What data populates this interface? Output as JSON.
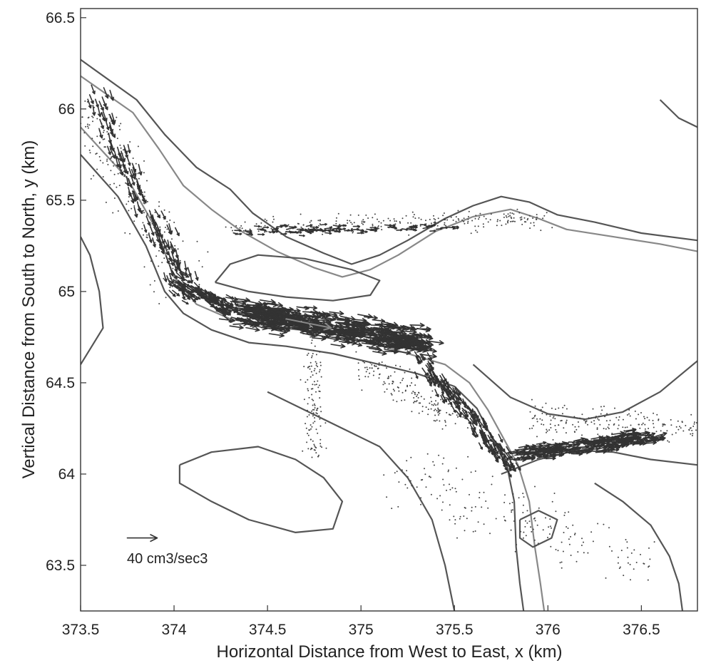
{
  "chart_data": {
    "type": "quiver",
    "xlabel": "Horizontal Distance from West to East, x (km)",
    "ylabel": "Vertical Distance from South to North, y (km)",
    "xlim": [
      373.5,
      376.8
    ],
    "ylim": [
      63.25,
      66.55
    ],
    "xticks": [
      "373.5",
      "374",
      "374.5",
      "375",
      "375.5",
      "376",
      "376.5"
    ],
    "yticks": [
      "66.5",
      "66",
      "65.5",
      "65",
      "64.5",
      "64",
      "63.5"
    ],
    "grid": false,
    "scale_arrow": {
      "label": "40 cm3/sec3",
      "x": 373.75,
      "y": 63.65,
      "magnitude": 40
    },
    "contours": [
      {
        "name": "outer-north-shore",
        "color": "#555555",
        "points": [
          [
            373.5,
            66.27
          ],
          [
            373.8,
            66.05
          ],
          [
            373.95,
            65.86
          ],
          [
            374.12,
            65.68
          ],
          [
            374.3,
            65.56
          ],
          [
            374.42,
            65.43
          ],
          [
            374.6,
            65.3
          ],
          [
            374.8,
            65.21
          ],
          [
            374.95,
            65.15
          ],
          [
            375.1,
            65.2
          ],
          [
            375.25,
            65.28
          ],
          [
            375.45,
            65.4
          ],
          [
            375.6,
            65.47
          ],
          [
            375.75,
            65.52
          ],
          [
            375.9,
            65.49
          ],
          [
            376.05,
            65.42
          ],
          [
            376.25,
            65.38
          ],
          [
            376.5,
            65.32
          ],
          [
            376.8,
            65.28
          ]
        ]
      },
      {
        "name": "inner-north-shore",
        "color": "#888888",
        "points": [
          [
            373.5,
            66.18
          ],
          [
            373.78,
            65.98
          ],
          [
            373.92,
            65.78
          ],
          [
            374.05,
            65.58
          ],
          [
            374.2,
            65.45
          ],
          [
            374.36,
            65.33
          ],
          [
            374.55,
            65.22
          ],
          [
            374.75,
            65.13
          ],
          [
            374.9,
            65.08
          ],
          [
            375.05,
            65.12
          ],
          [
            375.2,
            65.2
          ],
          [
            375.4,
            65.33
          ],
          [
            375.6,
            65.41
          ],
          [
            375.8,
            65.45
          ],
          [
            375.95,
            65.4
          ],
          [
            376.1,
            65.34
          ],
          [
            376.35,
            65.3
          ],
          [
            376.6,
            65.26
          ],
          [
            376.8,
            65.22
          ]
        ]
      },
      {
        "name": "outer-south-shore",
        "color": "#555555",
        "points": [
          [
            373.5,
            65.75
          ],
          [
            373.7,
            65.52
          ],
          [
            373.85,
            65.25
          ],
          [
            373.95,
            65.0
          ],
          [
            374.05,
            64.88
          ],
          [
            374.2,
            64.79
          ],
          [
            374.4,
            64.72
          ],
          [
            374.6,
            64.7
          ],
          [
            374.85,
            64.66
          ],
          [
            375.1,
            64.6
          ],
          [
            375.3,
            64.55
          ],
          [
            375.5,
            64.48
          ],
          [
            375.62,
            64.36
          ],
          [
            375.7,
            64.2
          ],
          [
            375.78,
            64.05
          ],
          [
            375.82,
            63.85
          ],
          [
            375.83,
            63.6
          ],
          [
            375.85,
            63.4
          ],
          [
            375.87,
            63.25
          ]
        ]
      },
      {
        "name": "inner-south-shore",
        "color": "#888888",
        "points": [
          [
            373.5,
            65.9
          ],
          [
            373.75,
            65.62
          ],
          [
            373.9,
            65.35
          ],
          [
            374.0,
            65.08
          ],
          [
            374.12,
            64.93
          ],
          [
            374.3,
            64.85
          ],
          [
            374.55,
            64.8
          ],
          [
            374.8,
            64.78
          ],
          [
            375.05,
            64.72
          ],
          [
            375.25,
            64.66
          ],
          [
            375.45,
            64.6
          ],
          [
            375.58,
            64.5
          ],
          [
            375.68,
            64.35
          ],
          [
            375.76,
            64.2
          ],
          [
            375.84,
            64.05
          ],
          [
            375.9,
            63.85
          ],
          [
            375.93,
            63.6
          ],
          [
            375.96,
            63.4
          ],
          [
            375.98,
            63.25
          ]
        ]
      },
      {
        "name": "east-channel-north",
        "color": "#555555",
        "points": [
          [
            375.6,
            64.6
          ],
          [
            375.8,
            64.42
          ],
          [
            376.0,
            64.33
          ],
          [
            376.2,
            64.3
          ],
          [
            376.4,
            64.34
          ],
          [
            376.6,
            64.45
          ],
          [
            376.8,
            64.62
          ]
        ]
      },
      {
        "name": "east-channel-south",
        "color": "#555555",
        "points": [
          [
            375.75,
            64.0
          ],
          [
            375.95,
            64.08
          ],
          [
            376.15,
            64.13
          ],
          [
            376.35,
            64.12
          ],
          [
            376.55,
            64.08
          ],
          [
            376.8,
            64.05
          ]
        ]
      },
      {
        "name": "island-north",
        "color": "#555555",
        "points": [
          [
            374.22,
            65.05
          ],
          [
            374.3,
            65.15
          ],
          [
            374.45,
            65.2
          ],
          [
            374.7,
            65.18
          ],
          [
            374.95,
            65.12
          ],
          [
            375.1,
            65.06
          ],
          [
            375.05,
            64.98
          ],
          [
            374.85,
            64.95
          ],
          [
            374.6,
            64.97
          ],
          [
            374.4,
            65.0
          ],
          [
            374.22,
            65.05
          ]
        ]
      },
      {
        "name": "island-southwest",
        "color": "#555555",
        "points": [
          [
            374.03,
            64.05
          ],
          [
            374.2,
            64.12
          ],
          [
            374.45,
            64.15
          ],
          [
            374.65,
            64.08
          ],
          [
            374.8,
            63.98
          ],
          [
            374.9,
            63.85
          ],
          [
            374.85,
            63.7
          ],
          [
            374.65,
            63.68
          ],
          [
            374.4,
            63.75
          ],
          [
            374.2,
            63.85
          ],
          [
            374.03,
            63.95
          ],
          [
            374.03,
            64.05
          ]
        ]
      },
      {
        "name": "island-east",
        "color": "#555555",
        "points": [
          [
            375.85,
            63.75
          ],
          [
            375.95,
            63.8
          ],
          [
            376.05,
            63.75
          ],
          [
            376.02,
            63.65
          ],
          [
            375.92,
            63.6
          ],
          [
            375.85,
            63.65
          ],
          [
            375.85,
            63.75
          ]
        ]
      },
      {
        "name": "south-shore-lower",
        "color": "#555555",
        "points": [
          [
            374.5,
            64.45
          ],
          [
            374.7,
            64.35
          ],
          [
            374.9,
            64.25
          ],
          [
            375.1,
            64.15
          ],
          [
            375.25,
            63.98
          ],
          [
            375.38,
            63.75
          ],
          [
            375.45,
            63.5
          ],
          [
            375.5,
            63.25
          ]
        ]
      },
      {
        "name": "southeast-shore",
        "color": "#555555",
        "points": [
          [
            376.25,
            63.95
          ],
          [
            376.4,
            63.85
          ],
          [
            376.55,
            63.72
          ],
          [
            376.65,
            63.55
          ],
          [
            376.7,
            63.4
          ],
          [
            376.72,
            63.25
          ]
        ]
      },
      {
        "name": "northeast-shore",
        "color": "#555555",
        "points": [
          [
            376.6,
            66.05
          ],
          [
            376.7,
            65.95
          ],
          [
            376.8,
            65.9
          ]
        ]
      },
      {
        "name": "west-shore",
        "color": "#555555",
        "points": [
          [
            373.5,
            64.6
          ],
          [
            373.62,
            64.8
          ],
          [
            373.6,
            65.0
          ],
          [
            373.55,
            65.2
          ],
          [
            373.5,
            65.3
          ]
        ]
      }
    ],
    "vectors": [
      {
        "name": "upstream-channel",
        "from": [
          373.55,
          66.1
        ],
        "to": [
          374.05,
          65.05
        ],
        "count": 120,
        "spread": 0.1,
        "u": 4,
        "v": -12,
        "jitter": 3,
        "color": "#333333"
      },
      {
        "name": "channel-bend",
        "from": [
          374.0,
          65.05
        ],
        "to": [
          374.3,
          64.9
        ],
        "count": 110,
        "spread": 0.08,
        "u": 10,
        "v": -6,
        "jitter": 4,
        "color": "#333333"
      },
      {
        "name": "main-jet",
        "from": [
          374.3,
          64.9
        ],
        "to": [
          375.3,
          64.72
        ],
        "count": 520,
        "spread": 0.11,
        "u": 18,
        "v": -2.5,
        "jitter": 4,
        "color": "#333333"
      },
      {
        "name": "north-passage",
        "from": [
          374.3,
          65.33
        ],
        "to": [
          375.5,
          65.35
        ],
        "count": 90,
        "spread": 0.04,
        "u": 8,
        "v": 0,
        "jitter": 3,
        "color": "#333333"
      },
      {
        "name": "downstream-bend",
        "from": [
          375.3,
          64.65
        ],
        "to": [
          375.8,
          64.05
        ],
        "count": 170,
        "spread": 0.07,
        "u": 5,
        "v": -9,
        "jitter": 3,
        "color": "#333333"
      },
      {
        "name": "east-jet",
        "from": [
          375.8,
          64.1
        ],
        "to": [
          376.55,
          64.2
        ],
        "count": 230,
        "spread": 0.06,
        "u": 14,
        "v": 2,
        "jitter": 4,
        "color": "#333333"
      },
      {
        "name": "mean-flow-arrow",
        "from": [
          374.6,
          64.85
        ],
        "to": [
          374.6,
          64.85
        ],
        "count": 1,
        "spread": 0,
        "u": 60,
        "v": -12,
        "jitter": 0,
        "color": "#888888"
      }
    ],
    "stipple_regions": [
      {
        "name": "upstream-sediment",
        "from": [
          373.5,
          66.0
        ],
        "to": [
          374.05,
          65.05
        ],
        "count": 220,
        "spread": 0.2
      },
      {
        "name": "north-passage-sediment",
        "from": [
          374.3,
          65.35
        ],
        "to": [
          376.0,
          65.4
        ],
        "count": 260,
        "spread": 0.08
      },
      {
        "name": "southwest-sediment",
        "from": [
          374.75,
          64.7
        ],
        "to": [
          374.75,
          64.1
        ],
        "count": 120,
        "spread": 0.08
      },
      {
        "name": "central-sediment",
        "from": [
          375.0,
          64.6
        ],
        "to": [
          375.5,
          64.3
        ],
        "count": 160,
        "spread": 0.12
      },
      {
        "name": "east-sediment",
        "from": [
          375.9,
          64.3
        ],
        "to": [
          376.8,
          64.25
        ],
        "count": 200,
        "spread": 0.12
      },
      {
        "name": "south-sediment",
        "from": [
          375.2,
          64.0
        ],
        "to": [
          376.5,
          63.5
        ],
        "count": 200,
        "spread": 0.25
      }
    ]
  }
}
